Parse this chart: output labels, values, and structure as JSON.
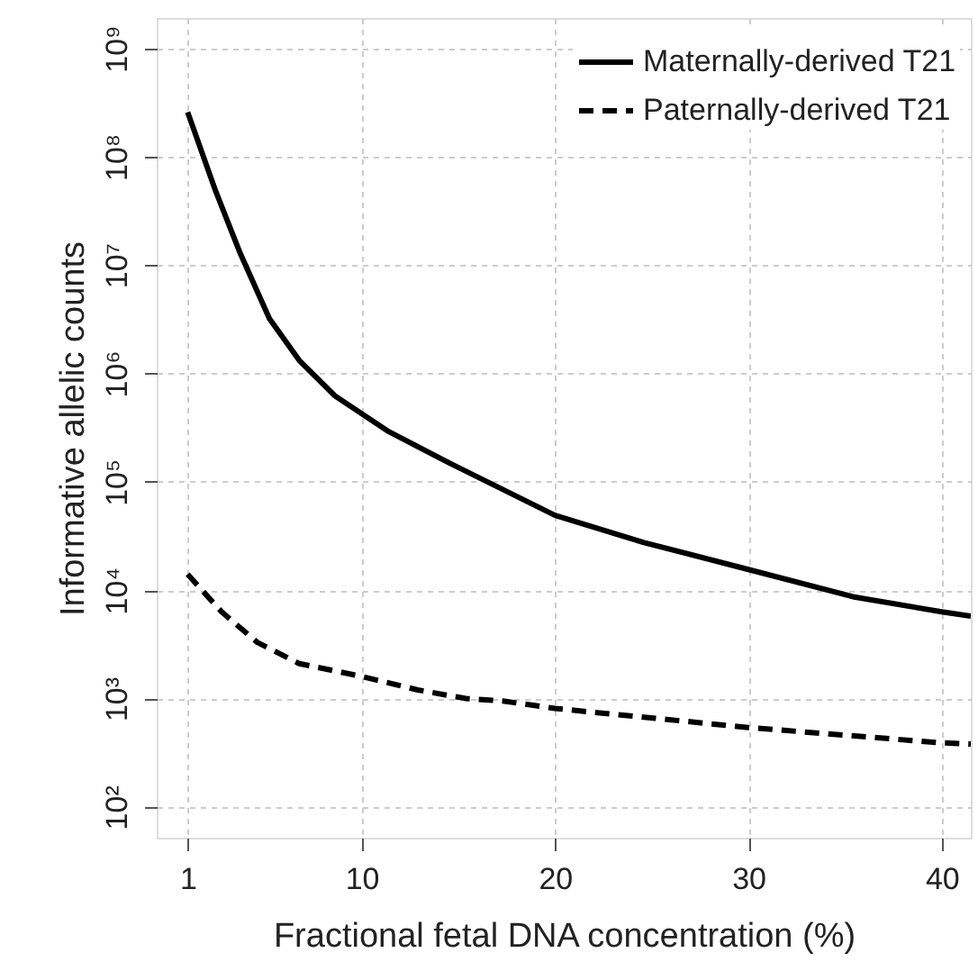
{
  "chart_data": {
    "type": "line",
    "xlabel": "Fractional fetal DNA concentration (%)",
    "ylabel": "Informative allelic counts",
    "xlim": [
      -0.6,
      41.5
    ],
    "xticks": [
      1,
      10,
      20,
      30,
      40
    ],
    "ylim": [
      52,
      1900000000
    ],
    "log": "y",
    "yticks": [
      {
        "value": 100,
        "label": "10²"
      },
      {
        "value": 1000,
        "label": "10³"
      },
      {
        "value": 10000,
        "label": "10⁴"
      },
      {
        "value": 100000,
        "label": "10⁵"
      },
      {
        "value": 1000000,
        "label": "10⁶"
      },
      {
        "value": 10000000,
        "label": "10⁷"
      },
      {
        "value": 100000000,
        "label": "10⁸"
      },
      {
        "value": 1000000000,
        "label": "10⁹"
      }
    ],
    "grid": true,
    "legend": "top right",
    "series": [
      {
        "name": "Maternally-derived T21",
        "color": "#000000",
        "line_style": "solid",
        "x": [
          1,
          2.45,
          3.69,
          5.23,
          6.77,
          8.62,
          11.4,
          14.5,
          20,
          24.6,
          30,
          35.4,
          40,
          41.5
        ],
        "values": [
          257000000,
          48000000,
          13200000,
          3200000,
          1320000,
          620000,
          290000,
          150000,
          49000,
          27500,
          15500,
          8700,
          6300,
          5750
        ]
      },
      {
        "name": "Paternally-derived T21",
        "color": "#000000",
        "line_style": "dashed",
        "x": [
          1,
          2.76,
          4.6,
          6.77,
          10,
          12.9,
          15.4,
          17.3,
          20,
          30,
          40,
          41.5
        ],
        "values": [
          14000,
          6300,
          3300,
          2100,
          1600,
          1200,
          1000,
          950,
          810,
          540,
          390,
          380
        ]
      }
    ]
  }
}
